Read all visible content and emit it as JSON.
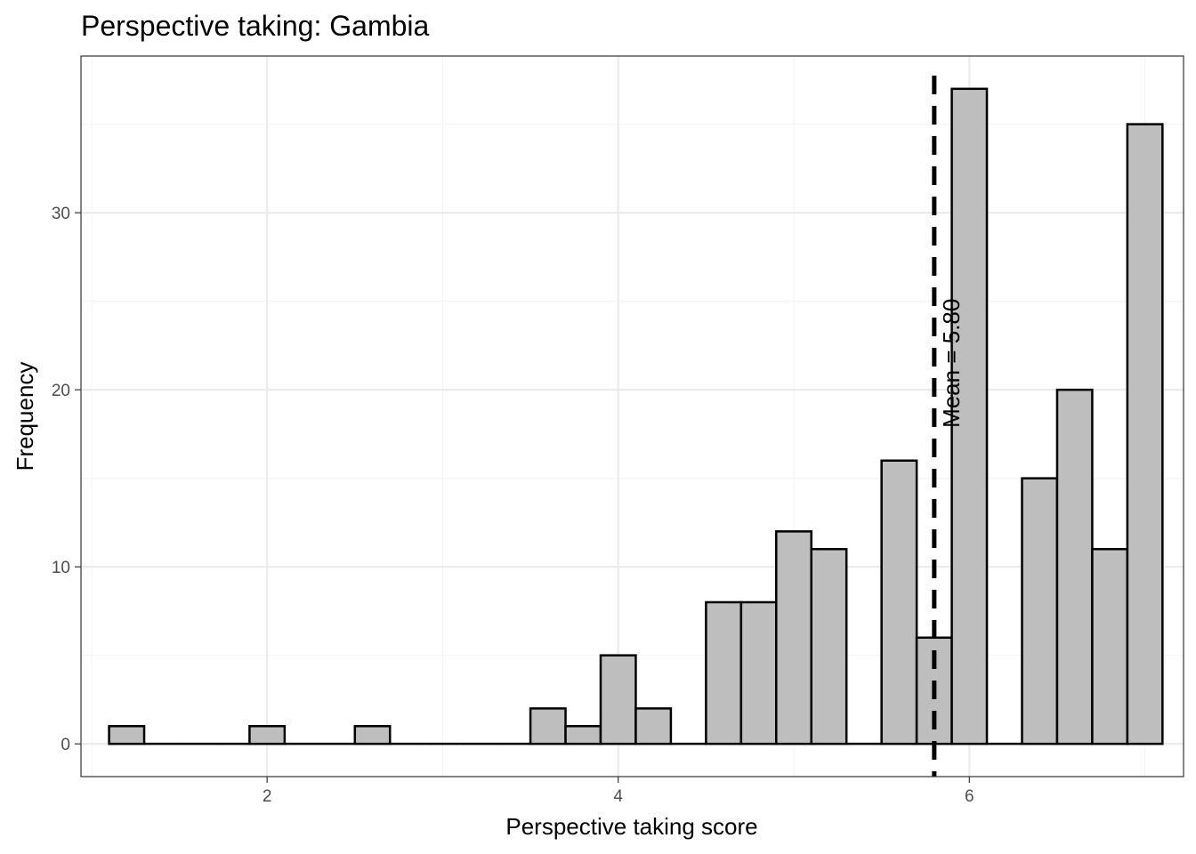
{
  "chart_data": {
    "type": "bar",
    "title": "Perspective taking: Gambia",
    "xlabel": "Perspective taking score",
    "ylabel": "Frequency",
    "xlim": [
      0.94,
      7.22
    ],
    "ylim": [
      -1.85,
      38.85
    ],
    "x_ticks": [
      2,
      4,
      6
    ],
    "y_ticks": [
      0,
      10,
      20,
      30
    ],
    "x_tick_labels": [
      "2",
      "4",
      "6"
    ],
    "y_tick_labels": [
      "0",
      "10",
      "20",
      "30"
    ],
    "grid": true,
    "bin_width": 0.2,
    "bin_centers": [
      1.2,
      1.4,
      1.6,
      1.8,
      2.0,
      2.2,
      2.4,
      2.6,
      2.8,
      3.0,
      3.2,
      3.4,
      3.6,
      3.8,
      4.0,
      4.2,
      4.4,
      4.6,
      4.8,
      5.0,
      5.2,
      5.4,
      5.6,
      5.8,
      6.0,
      6.2,
      6.4,
      6.6,
      6.8,
      7.0
    ],
    "values": [
      1,
      0,
      0,
      0,
      1,
      0,
      0,
      1,
      0,
      0,
      0,
      0,
      2,
      1,
      5,
      2,
      0,
      8,
      8,
      12,
      11,
      0,
      16,
      6,
      37,
      0,
      15,
      20,
      11,
      35
    ],
    "mean_line": {
      "x": 5.8,
      "label": "Mean = 5.80"
    },
    "colors": {
      "bar_fill": "#bebebe",
      "bar_stroke": "#000000",
      "grid_major": "#ebebeb",
      "grid_minor": "#f5f5f5",
      "panel_border": "#333333"
    }
  }
}
